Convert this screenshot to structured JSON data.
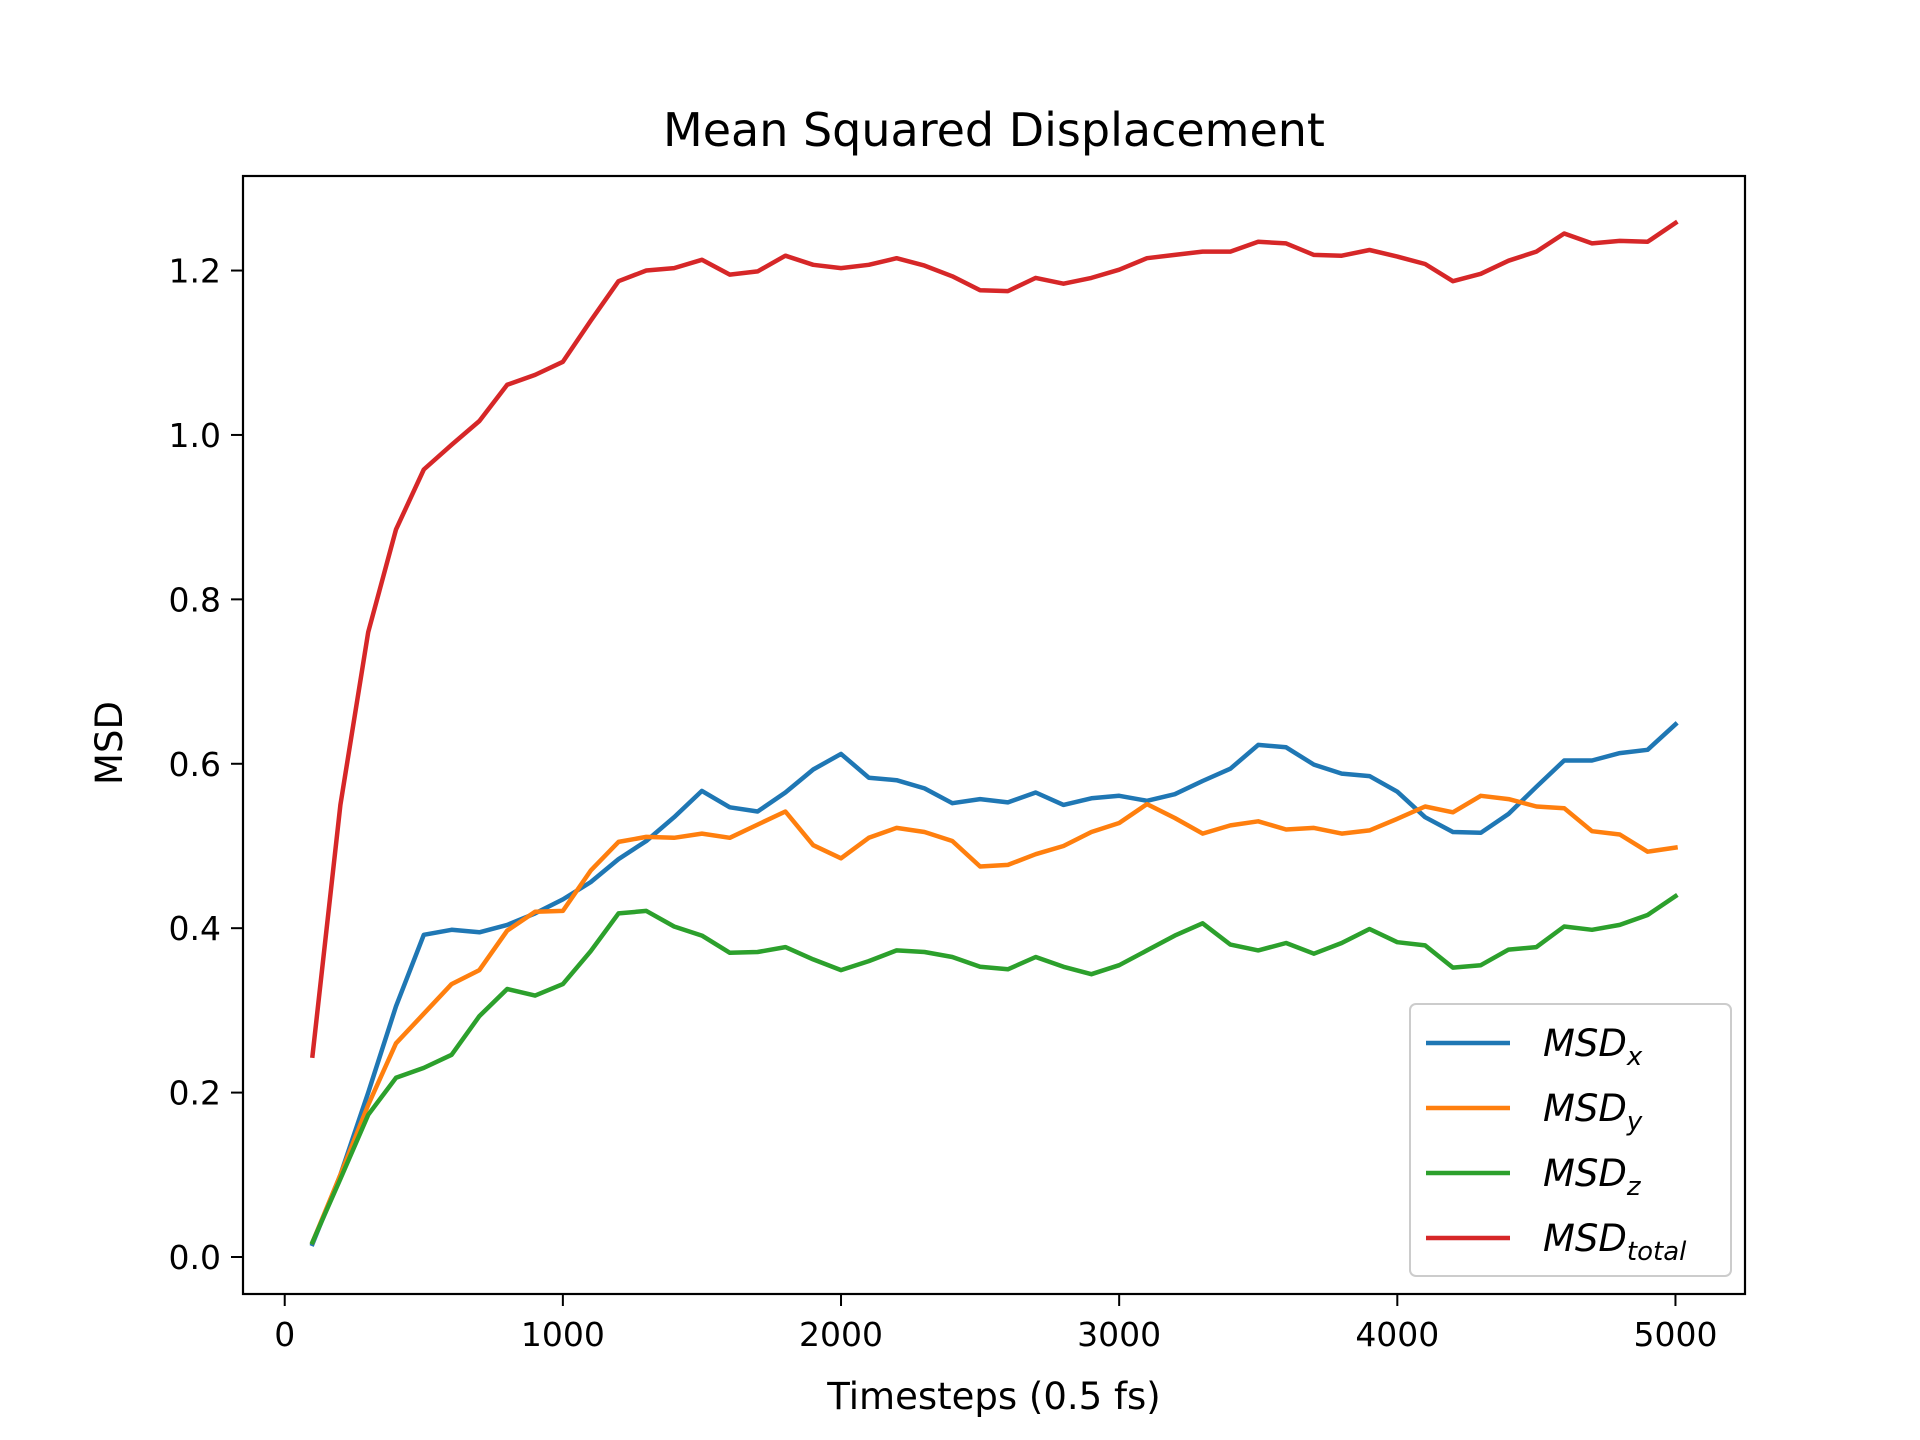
{
  "chart_data": {
    "type": "line",
    "title": "Mean Squared Displacement",
    "xlabel": "Timesteps (0.5 fs)",
    "ylabel": "MSD",
    "xlim": [
      -150,
      5250
    ],
    "ylim": [
      -0.045,
      1.315
    ],
    "xticks": [
      0,
      1000,
      2000,
      3000,
      4000,
      5000
    ],
    "yticks": [
      0.0,
      0.2,
      0.4,
      0.6,
      0.8,
      1.0,
      1.2
    ],
    "xtick_labels": [
      "0",
      "1000",
      "2000",
      "3000",
      "4000",
      "5000"
    ],
    "ytick_labels": [
      "0.0",
      "0.2",
      "0.4",
      "0.6",
      "0.8",
      "1.0",
      "1.2"
    ],
    "grid": false,
    "legend_position": "lower-right",
    "x": [
      100,
      200,
      300,
      400,
      500,
      600,
      700,
      800,
      900,
      1000,
      1100,
      1200,
      1300,
      1400,
      1500,
      1600,
      1700,
      1800,
      1900,
      2000,
      2100,
      2200,
      2300,
      2400,
      2500,
      2600,
      2700,
      2800,
      2900,
      3000,
      3100,
      3200,
      3300,
      3400,
      3500,
      3600,
      3700,
      3800,
      3900,
      4000,
      4100,
      4200,
      4300,
      4400,
      4500,
      4600,
      4700,
      4800,
      4900,
      5000
    ],
    "series": [
      {
        "name": "MSD",
        "subscript": "x",
        "color": "#1f77b4",
        "values": [
          0.016,
          0.1,
          0.2,
          0.305,
          0.392,
          0.398,
          0.395,
          0.404,
          0.418,
          0.435,
          0.456,
          0.484,
          0.506,
          0.535,
          0.567,
          0.547,
          0.542,
          0.565,
          0.593,
          0.612,
          0.583,
          0.58,
          0.57,
          0.552,
          0.557,
          0.553,
          0.565,
          0.55,
          0.558,
          0.561,
          0.555,
          0.563,
          0.579,
          0.594,
          0.623,
          0.62,
          0.599,
          0.588,
          0.585,
          0.566,
          0.535,
          0.517,
          0.516,
          0.539,
          0.572,
          0.604,
          0.604,
          0.613,
          0.617,
          0.648
        ]
      },
      {
        "name": "MSD",
        "subscript": "y",
        "color": "#ff7f0e",
        "values": [
          0.018,
          0.1,
          0.185,
          0.26,
          0.296,
          0.332,
          0.349,
          0.397,
          0.42,
          0.421,
          0.47,
          0.505,
          0.511,
          0.51,
          0.515,
          0.51,
          0.526,
          0.542,
          0.501,
          0.485,
          0.51,
          0.522,
          0.517,
          0.506,
          0.475,
          0.477,
          0.49,
          0.5,
          0.517,
          0.528,
          0.551,
          0.534,
          0.515,
          0.525,
          0.53,
          0.52,
          0.522,
          0.515,
          0.519,
          0.533,
          0.548,
          0.541,
          0.561,
          0.557,
          0.548,
          0.546,
          0.518,
          0.514,
          0.493,
          0.498
        ]
      },
      {
        "name": "MSD",
        "subscript": "z",
        "color": "#2ca02c",
        "values": [
          0.018,
          0.095,
          0.173,
          0.218,
          0.23,
          0.246,
          0.293,
          0.326,
          0.318,
          0.332,
          0.372,
          0.418,
          0.421,
          0.402,
          0.391,
          0.37,
          0.371,
          0.377,
          0.362,
          0.349,
          0.36,
          0.373,
          0.371,
          0.365,
          0.353,
          0.35,
          0.365,
          0.353,
          0.344,
          0.355,
          0.373,
          0.391,
          0.406,
          0.38,
          0.373,
          0.382,
          0.369,
          0.382,
          0.399,
          0.383,
          0.379,
          0.352,
          0.355,
          0.374,
          0.377,
          0.402,
          0.398,
          0.404,
          0.416,
          0.439
        ]
      },
      {
        "name": "MSD",
        "subscript": "total",
        "color": "#d62728",
        "values": [
          0.245,
          0.55,
          0.76,
          0.885,
          0.958,
          0.988,
          1.017,
          1.061,
          1.073,
          1.089,
          1.139,
          1.187,
          1.2,
          1.203,
          1.213,
          1.195,
          1.199,
          1.218,
          1.207,
          1.203,
          1.207,
          1.215,
          1.206,
          1.193,
          1.176,
          1.175,
          1.191,
          1.184,
          1.191,
          1.201,
          1.215,
          1.219,
          1.223,
          1.223,
          1.235,
          1.233,
          1.219,
          1.218,
          1.225,
          1.217,
          1.208,
          1.187,
          1.196,
          1.212,
          1.223,
          1.245,
          1.233,
          1.236,
          1.235,
          1.258
        ]
      }
    ]
  }
}
